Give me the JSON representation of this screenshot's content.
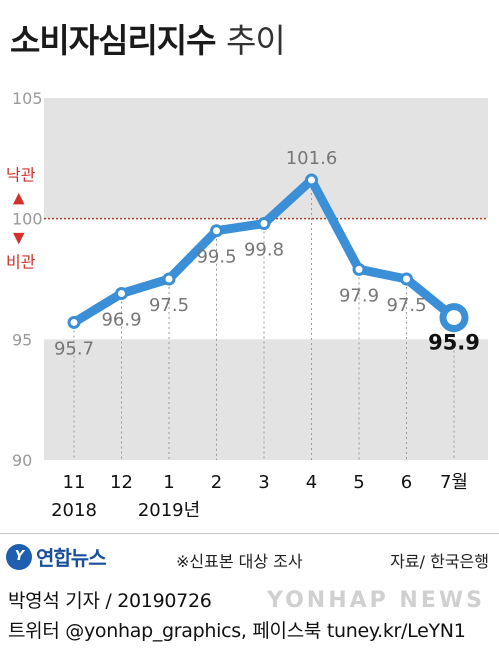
{
  "title": {
    "main": "소비자심리지수",
    "sub": "추이"
  },
  "chart_data": {
    "type": "line",
    "title": "소비자심리지수 추이",
    "x_labels": [
      {
        "month": "11",
        "year": "2018"
      },
      {
        "month": "12",
        "year": ""
      },
      {
        "month": "1",
        "year": "2019년"
      },
      {
        "month": "2",
        "year": ""
      },
      {
        "month": "3",
        "year": ""
      },
      {
        "month": "4",
        "year": ""
      },
      {
        "month": "5",
        "year": ""
      },
      {
        "month": "6",
        "year": ""
      },
      {
        "month": "7월",
        "year": ""
      }
    ],
    "series": [
      {
        "values": [
          95.7,
          96.9,
          97.5,
          99.5,
          99.8,
          101.6,
          97.9,
          97.5,
          95.9
        ]
      }
    ],
    "value_labels": [
      "95.7",
      "96.9",
      "97.5",
      "99.5",
      "99.8",
      "101.6",
      "97.9",
      "97.5",
      "95.9"
    ],
    "ylim": [
      90,
      105
    ],
    "yticks": [
      "105",
      "100",
      "95",
      "90"
    ],
    "reference_line": {
      "value": 100,
      "color": "#c0392b"
    },
    "annotations": {
      "up_label": "낙관",
      "down_label": "비관",
      "up_arrow": "▲",
      "down_arrow": "▼"
    },
    "colors": {
      "line": "#3a8fd6",
      "band": "#e3e3e3",
      "last_point_fill": "#ffffff",
      "accent": "#d0312d"
    }
  },
  "footer": {
    "logo_text": "연합뉴스",
    "logo_mark": "Y",
    "note": "※신표본 대상 조사",
    "source": "자료/ 한국은행",
    "reporter": "박영석 기자 /  20190726",
    "social": "트위터 @yonhap_graphics, 페이스북 tuney.kr/LeYN1",
    "watermark": "YONHAP NEWS"
  }
}
